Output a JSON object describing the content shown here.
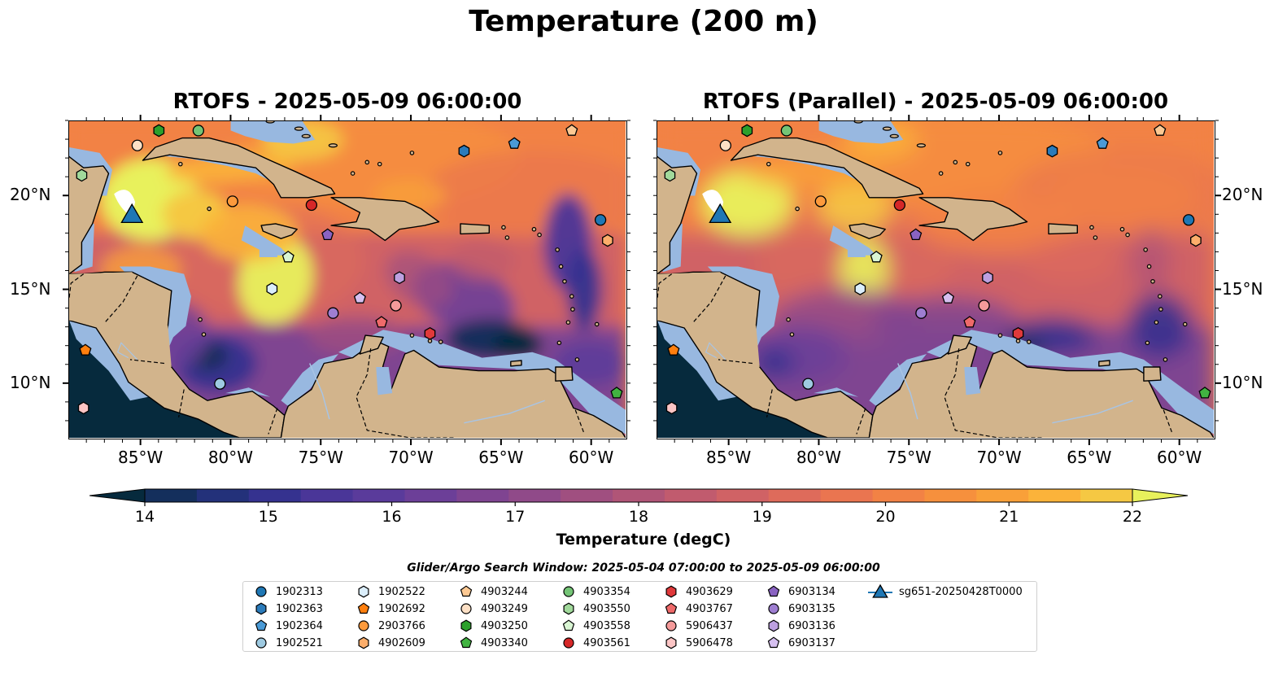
{
  "title": "Temperature (200 m)",
  "panels": [
    {
      "id": "left",
      "title": "RTOFS - 2025-05-09 06:00:00"
    },
    {
      "id": "right",
      "title": "RTOFS (Parallel) - 2025-05-09 06:00:00"
    }
  ],
  "axes": {
    "lon_ticks": [
      "85°W",
      "80°W",
      "75°W",
      "70°W",
      "65°W",
      "60°W"
    ],
    "lon_tick_values": [
      -85,
      -80,
      -75,
      -70,
      -65,
      -60
    ],
    "lat_ticks": [
      "20°N",
      "15°N",
      "10°N"
    ],
    "lat_tick_values": [
      20,
      15,
      10
    ],
    "lon_range": [
      -89,
      -58
    ],
    "lat_range": [
      7,
      24
    ]
  },
  "colorbar": {
    "label": "Temperature (degC)",
    "min": 14,
    "max": 22,
    "step": 0.5,
    "ticks": [
      "14",
      "15",
      "16",
      "17",
      "18",
      "19",
      "20",
      "21",
      "22"
    ],
    "colors": [
      "#062a3d",
      "#142f5c",
      "#23317a",
      "#35328f",
      "#4a3698",
      "#5a3b9b",
      "#6c3f98",
      "#7f4491",
      "#904a89",
      "#a04f80",
      "#b05577",
      "#c15b6e",
      "#d06265",
      "#de6b5b",
      "#ea7550",
      "#f28245",
      "#f6903d",
      "#f9a039",
      "#fbb33a",
      "#f5c843",
      "#e8f15c"
    ]
  },
  "search_window": "Glider/Argo Search Window: 2025-05-04 07:00:00 to 2025-05-09 06:00:00",
  "colors": {
    "land": "#d2b48c",
    "shelf": "#98b8e0",
    "deep_dark": "#062a3d",
    "warm": "#f0703c",
    "hot": "#e8f15c"
  },
  "legend": [
    {
      "label": "1902313",
      "shape": "circle",
      "color": "#1f77b4"
    },
    {
      "label": "1902363",
      "shape": "hexagon",
      "color": "#2b7bba"
    },
    {
      "label": "1902364",
      "shape": "pentagon",
      "color": "#4a9ad6"
    },
    {
      "label": "1902521",
      "shape": "circle",
      "color": "#9ecae1"
    },
    {
      "label": "1902522",
      "shape": "hexagon",
      "color": "#dbeefb"
    },
    {
      "label": "1902692",
      "shape": "pentagon",
      "color": "#ff7f0e"
    },
    {
      "label": "2903766",
      "shape": "circle",
      "color": "#fd9a3c"
    },
    {
      "label": "4902609",
      "shape": "hexagon",
      "color": "#fdae6b"
    },
    {
      "label": "4903244",
      "shape": "pentagon",
      "color": "#fdc993"
    },
    {
      "label": "4903249",
      "shape": "circle",
      "color": "#fde0c5"
    },
    {
      "label": "4903250",
      "shape": "hexagon",
      "color": "#2ca02c"
    },
    {
      "label": "4903340",
      "shape": "pentagon",
      "color": "#41b341"
    },
    {
      "label": "4903354",
      "shape": "circle",
      "color": "#74c476"
    },
    {
      "label": "4903550",
      "shape": "hexagon",
      "color": "#a1d99b"
    },
    {
      "label": "4903558",
      "shape": "pentagon",
      "color": "#d9f5d3"
    },
    {
      "label": "4903561",
      "shape": "circle",
      "color": "#d62728"
    },
    {
      "label": "4903629",
      "shape": "hexagon",
      "color": "#e0393b"
    },
    {
      "label": "4903767",
      "shape": "pentagon",
      "color": "#ef6a6a"
    },
    {
      "label": "5906437",
      "shape": "circle",
      "color": "#f59a9a"
    },
    {
      "label": "5906478",
      "shape": "hexagon",
      "color": "#fcc5c5"
    },
    {
      "label": "6903134",
      "shape": "pentagon",
      "color": "#8a63c2"
    },
    {
      "label": "6903135",
      "shape": "circle",
      "color": "#9e7ed1"
    },
    {
      "label": "6903136",
      "shape": "hexagon",
      "color": "#bda0e0"
    },
    {
      "label": "6903137",
      "shape": "pentagon",
      "color": "#d6c0f0"
    },
    {
      "label": "sg651-20250428T0000",
      "shape": "triangle",
      "color": "#1f77b4"
    }
  ],
  "floats": [
    {
      "id": "1902313",
      "lon": -59.4,
      "lat": 18.7
    },
    {
      "id": "1902363",
      "lon": -67.0,
      "lat": 22.4
    },
    {
      "id": "1902364",
      "lon": -64.2,
      "lat": 22.8
    },
    {
      "id": "1902521",
      "lon": -80.6,
      "lat": 9.9
    },
    {
      "id": "1902522",
      "lon": -77.7,
      "lat": 15.0
    },
    {
      "id": "1902692",
      "lon": -88.1,
      "lat": 11.7
    },
    {
      "id": "2903766",
      "lon": -79.9,
      "lat": 19.7
    },
    {
      "id": "4902609",
      "lon": -59.0,
      "lat": 17.6
    },
    {
      "id": "4903244",
      "lon": -61.0,
      "lat": 23.5
    },
    {
      "id": "4903249",
      "lon": -85.2,
      "lat": 22.7
    },
    {
      "id": "4903250",
      "lon": -84.0,
      "lat": 23.5
    },
    {
      "id": "4903340",
      "lon": -58.5,
      "lat": 9.4
    },
    {
      "id": "4903354",
      "lon": -81.8,
      "lat": 23.5
    },
    {
      "id": "4903550",
      "lon": -88.3,
      "lat": 21.1
    },
    {
      "id": "4903558",
      "lon": -76.8,
      "lat": 16.7
    },
    {
      "id": "4903561",
      "lon": -75.5,
      "lat": 19.5
    },
    {
      "id": "4903629",
      "lon": -68.9,
      "lat": 12.6
    },
    {
      "id": "4903767",
      "lon": -71.6,
      "lat": 13.2
    },
    {
      "id": "5906437",
      "lon": -70.8,
      "lat": 14.1
    },
    {
      "id": "5906478",
      "lon": -88.2,
      "lat": 8.6
    },
    {
      "id": "6903134",
      "lon": -74.6,
      "lat": 17.9
    },
    {
      "id": "6903135",
      "lon": -74.3,
      "lat": 13.7
    },
    {
      "id": "6903136",
      "lon": -70.6,
      "lat": 15.6
    },
    {
      "id": "6903137",
      "lon": -72.8,
      "lat": 14.5
    }
  ],
  "glider": {
    "id": "sg651-20250428T0000",
    "lon": -85.5,
    "lat": 18.8
  }
}
